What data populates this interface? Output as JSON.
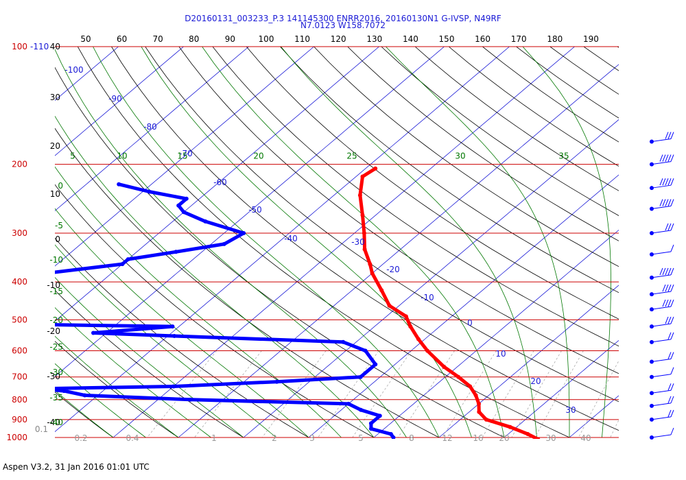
{
  "chart_data": {
    "type": "skew-t",
    "title_line1": "D20160131_003233_P.3 141145300 ENRR2016, 20160130N1 G-IVSP, N49RF",
    "title_line2": "N7.0123 W158.7072",
    "footer": "Aspen V3.2, 31 Jan 2016  01:01 UTC",
    "top_axis_ticks": [
      "50",
      "60",
      "70",
      "80",
      "90",
      "100",
      "110",
      "120",
      "130",
      "140",
      "150",
      "160",
      "170",
      "180",
      "190"
    ],
    "pressure_levels": [
      100,
      200,
      300,
      400,
      500,
      600,
      700,
      800,
      900,
      1000
    ],
    "pressure_left_labels": [
      "100",
      "200",
      "300",
      "400",
      "500",
      "600",
      "700",
      "800",
      "900",
      "1000"
    ],
    "pressure_top_extra": "-110",
    "height_labels": [
      "40",
      "30",
      "20",
      "10",
      "0",
      "-10",
      "-20",
      "-30",
      "-40"
    ],
    "height_bottom_label": "0.1",
    "temperature_isotherm_labels": [
      "-100",
      "-90",
      "-80",
      "-70",
      "-60",
      "-50",
      "-40",
      "-30",
      "-20",
      "-10",
      "0",
      "10",
      "20",
      "30"
    ],
    "mixing_ratio_labels": [
      "0.2",
      "0.4",
      "1",
      "2",
      "3",
      "5",
      "8",
      "12",
      "16",
      "20",
      "30",
      "40"
    ],
    "dry_adiabat_labels": [
      "5",
      "10",
      "15",
      "20",
      "25",
      "30",
      "35"
    ],
    "moist_adiabat_labels": [
      "0",
      "-5",
      "-10",
      "-15",
      "-20",
      "-25",
      "-30",
      "-35",
      "-40"
    ],
    "series": [
      {
        "name": "Temperature",
        "color": "#ff0000",
        "points": [
          [
            205,
            -48.5
          ],
          [
            215,
            -49
          ],
          [
            240,
            -46
          ],
          [
            270,
            -42
          ],
          [
            300,
            -38.5
          ],
          [
            330,
            -35.5
          ],
          [
            360,
            -32
          ],
          [
            380,
            -30
          ],
          [
            420,
            -25.5
          ],
          [
            460,
            -21.5
          ],
          [
            490,
            -17
          ],
          [
            520,
            -14.5
          ],
          [
            560,
            -11
          ],
          [
            600,
            -7.5
          ],
          [
            660,
            -2
          ],
          [
            700,
            2
          ],
          [
            740,
            5.5
          ],
          [
            780,
            8
          ],
          [
            820,
            10
          ],
          [
            860,
            11.5
          ],
          [
            900,
            14
          ],
          [
            940,
            19
          ],
          [
            980,
            23
          ],
          [
            1010,
            25.5
          ]
        ]
      },
      {
        "name": "Dewpoint",
        "color": "#0000ff",
        "points": [
          [
            225,
            -85
          ],
          [
            235,
            -79
          ],
          [
            245,
            -72
          ],
          [
            255,
            -72
          ],
          [
            265,
            -70
          ],
          [
            280,
            -65
          ],
          [
            300,
            -57
          ],
          [
            320,
            -58
          ],
          [
            335,
            -64
          ],
          [
            350,
            -70
          ],
          [
            360,
            -70
          ],
          [
            380,
            -80
          ],
          [
            420,
            -88
          ],
          [
            460,
            -86
          ],
          [
            510,
            -87
          ],
          [
            520,
            -51
          ],
          [
            540,
            -62
          ],
          [
            550,
            -49
          ],
          [
            570,
            -22
          ],
          [
            600,
            -17
          ],
          [
            650,
            -13
          ],
          [
            700,
            -13
          ],
          [
            720,
            -25
          ],
          [
            740,
            -40
          ],
          [
            750,
            -60
          ],
          [
            760,
            -56
          ],
          [
            780,
            -52
          ],
          [
            800,
            -35
          ],
          [
            820,
            -10
          ],
          [
            850,
            -7
          ],
          [
            880,
            -3
          ],
          [
            920,
            -3
          ],
          [
            950,
            -2
          ],
          [
            980,
            2
          ],
          [
            1000,
            3
          ]
        ]
      }
    ],
    "wind_barbs": [
      {
        "pressure": 175,
        "speed_kt": 30
      },
      {
        "pressure": 200,
        "speed_kt": 45
      },
      {
        "pressure": 230,
        "speed_kt": 50
      },
      {
        "pressure": 260,
        "speed_kt": 45
      },
      {
        "pressure": 300,
        "speed_kt": 30
      },
      {
        "pressure": 340,
        "speed_kt": 10
      },
      {
        "pressure": 390,
        "speed_kt": 45
      },
      {
        "pressure": 430,
        "speed_kt": 40
      },
      {
        "pressure": 470,
        "speed_kt": 40
      },
      {
        "pressure": 520,
        "speed_kt": 30
      },
      {
        "pressure": 570,
        "speed_kt": 15
      },
      {
        "pressure": 640,
        "speed_kt": 15
      },
      {
        "pressure": 700,
        "speed_kt": 10
      },
      {
        "pressure": 770,
        "speed_kt": 15
      },
      {
        "pressure": 830,
        "speed_kt": 20
      },
      {
        "pressure": 900,
        "speed_kt": 15
      },
      {
        "pressure": 1000,
        "speed_kt": 10
      }
    ],
    "colors": {
      "isobar": "#cc0000",
      "isotherm": "#1a1ad6",
      "dry_adiabat": "#000000",
      "moist_adiabat": "#007700",
      "mixing_ratio": "#aaaaaa",
      "temperature": "#ff0000",
      "dewpoint": "#0000ff",
      "barb": "#0000ff"
    },
    "grid": true
  }
}
